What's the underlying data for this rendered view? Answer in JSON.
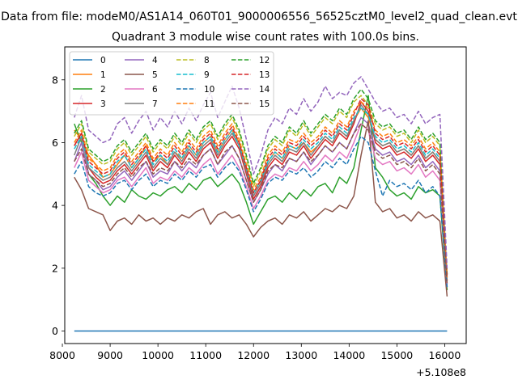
{
  "chart_data": {
    "type": "line",
    "suptitle": "Data from file: modeM0/AS1A14_060T01_9000006556_56525cztM0_level2_quad_clean.evt",
    "title": "Quadrant 3 module wise count rates with 100.0s bins.",
    "xlabel": "",
    "ylabel": "",
    "offset_text": "+5.108e8",
    "xlim": [
      8050,
      16450
    ],
    "ylim": [
      -0.4,
      9.05
    ],
    "xticks": [
      8000,
      9000,
      10000,
      11000,
      12000,
      13000,
      14000,
      15000,
      16000
    ],
    "xtick_labels": [
      "8000",
      "9000",
      "10000",
      "11000",
      "12000",
      "13000",
      "14000",
      "15000",
      "16000"
    ],
    "yticks": [
      0,
      2,
      4,
      6,
      8
    ],
    "ytick_labels": [
      "0",
      "2",
      "4",
      "6",
      "8"
    ],
    "x": [
      8250,
      8400,
      8550,
      8700,
      8850,
      9000,
      9150,
      9300,
      9450,
      9600,
      9750,
      9900,
      10050,
      10200,
      10350,
      10500,
      10650,
      10800,
      10950,
      11100,
      11250,
      11400,
      11550,
      11700,
      11850,
      12000,
      12150,
      12300,
      12450,
      12600,
      12750,
      12900,
      13050,
      13200,
      13350,
      13500,
      13650,
      13800,
      13950,
      14100,
      14250,
      14400,
      14550,
      14700,
      14850,
      15000,
      15150,
      15300,
      15450,
      15600,
      15750,
      15900,
      16050
    ],
    "legend_position": "upper left",
    "series": [
      {
        "name": "0",
        "color": "#1f77b4",
        "dash": "solid",
        "values": [
          0,
          0,
          0,
          0,
          0,
          0,
          0,
          0,
          0,
          0,
          0,
          0,
          0,
          0,
          0,
          0,
          0,
          0,
          0,
          0,
          0,
          0,
          0,
          0,
          0,
          0,
          0,
          0,
          0,
          0,
          0,
          0,
          0,
          0,
          0,
          0,
          0,
          0,
          0,
          0,
          0,
          0,
          0,
          0,
          0,
          0,
          0,
          0,
          0,
          0,
          0,
          0,
          0
        ]
      },
      {
        "name": "1",
        "color": "#ff7f0e",
        "dash": "solid",
        "values": [
          6.4,
          6.1,
          5.6,
          5.3,
          4.9,
          5.0,
          5.3,
          5.6,
          5.2,
          5.5,
          5.9,
          5.4,
          5.6,
          5.3,
          5.7,
          5.5,
          5.9,
          5.6,
          6.0,
          6.2,
          5.7,
          6.1,
          6.4,
          6.0,
          5.2,
          4.4,
          4.8,
          5.4,
          5.7,
          5.5,
          5.9,
          5.8,
          6.0,
          5.7,
          5.9,
          6.2,
          6.0,
          6.4,
          6.2,
          6.7,
          7.1,
          6.8,
          6.1,
          5.9,
          6.0,
          5.7,
          5.8,
          5.6,
          5.9,
          5.5,
          5.7,
          5.4,
          1.8
        ]
      },
      {
        "name": "2",
        "color": "#2ca02c",
        "dash": "solid",
        "values": [
          6.6,
          6.0,
          5.0,
          4.7,
          4.3,
          4.0,
          4.3,
          4.1,
          4.5,
          4.3,
          4.2,
          4.4,
          4.3,
          4.5,
          4.6,
          4.4,
          4.7,
          4.5,
          4.8,
          4.9,
          4.6,
          4.8,
          5.0,
          4.7,
          4.1,
          3.4,
          3.8,
          4.2,
          4.3,
          4.1,
          4.4,
          4.2,
          4.5,
          4.3,
          4.6,
          4.7,
          4.4,
          4.9,
          4.7,
          5.2,
          6.4,
          7.5,
          5.2,
          4.9,
          4.5,
          4.3,
          4.4,
          4.2,
          4.6,
          4.4,
          4.5,
          4.3,
          1.3
        ]
      },
      {
        "name": "3",
        "color": "#d62728",
        "dash": "solid",
        "values": [
          5.9,
          6.3,
          5.2,
          4.9,
          4.7,
          4.8,
          5.1,
          5.3,
          5.0,
          5.3,
          5.6,
          5.1,
          5.4,
          5.2,
          5.6,
          5.3,
          5.7,
          5.4,
          5.8,
          6.0,
          5.5,
          5.9,
          6.2,
          5.8,
          5.0,
          4.2,
          4.6,
          5.2,
          5.5,
          5.3,
          5.7,
          5.6,
          5.9,
          5.5,
          5.8,
          6.1,
          5.9,
          6.3,
          6.1,
          6.6,
          7.3,
          7.0,
          6.0,
          5.8,
          5.9,
          5.6,
          5.7,
          5.5,
          5.8,
          5.4,
          5.6,
          5.3,
          1.6
        ]
      },
      {
        "name": "4",
        "color": "#9467bd",
        "dash": "solid",
        "values": [
          5.4,
          6.0,
          5.0,
          4.8,
          4.5,
          4.6,
          4.9,
          5.1,
          4.8,
          5.1,
          5.4,
          4.9,
          5.1,
          5.0,
          5.4,
          5.1,
          5.4,
          5.2,
          5.6,
          5.8,
          5.3,
          5.6,
          5.9,
          5.5,
          4.8,
          4.1,
          4.5,
          5.0,
          5.3,
          5.1,
          5.5,
          5.4,
          5.7,
          5.3,
          5.6,
          5.9,
          5.7,
          6.0,
          5.8,
          6.3,
          6.8,
          6.6,
          5.8,
          5.6,
          5.7,
          5.4,
          5.5,
          5.3,
          5.6,
          5.2,
          5.4,
          5.1,
          1.5
        ]
      },
      {
        "name": "5",
        "color": "#8c564b",
        "dash": "solid",
        "values": [
          4.9,
          4.5,
          3.9,
          3.8,
          3.7,
          3.2,
          3.5,
          3.6,
          3.4,
          3.7,
          3.5,
          3.6,
          3.4,
          3.6,
          3.5,
          3.7,
          3.6,
          3.8,
          3.9,
          3.4,
          3.7,
          3.8,
          3.6,
          3.7,
          3.4,
          3.0,
          3.3,
          3.5,
          3.6,
          3.4,
          3.7,
          3.6,
          3.8,
          3.5,
          3.7,
          3.9,
          3.8,
          4.0,
          3.9,
          4.3,
          5.6,
          6.7,
          4.1,
          3.8,
          3.9,
          3.6,
          3.7,
          3.5,
          3.8,
          3.6,
          3.7,
          3.5,
          1.1
        ]
      },
      {
        "name": "6",
        "color": "#e377c2",
        "dash": "solid",
        "values": [
          5.2,
          5.7,
          4.8,
          4.6,
          4.4,
          4.5,
          4.8,
          4.9,
          4.6,
          4.9,
          5.2,
          4.7,
          4.9,
          4.8,
          5.1,
          4.9,
          5.2,
          5.0,
          5.3,
          5.5,
          5.0,
          5.3,
          5.6,
          5.2,
          4.6,
          3.9,
          4.3,
          4.8,
          5.0,
          4.9,
          5.2,
          5.1,
          5.4,
          5.1,
          5.3,
          5.6,
          5.4,
          5.7,
          5.5,
          6.0,
          6.6,
          6.4,
          5.5,
          5.3,
          5.4,
          5.1,
          5.2,
          5.0,
          5.3,
          4.9,
          5.1,
          4.8,
          1.4
        ]
      },
      {
        "name": "7",
        "color": "#7f7f7f",
        "dash": "solid",
        "values": [
          5.6,
          6.2,
          5.2,
          5.0,
          4.8,
          4.9,
          5.2,
          5.4,
          5.1,
          5.4,
          5.7,
          5.2,
          5.5,
          5.3,
          5.7,
          5.4,
          5.8,
          5.5,
          5.9,
          6.1,
          5.6,
          6.0,
          6.3,
          5.9,
          5.1,
          4.3,
          4.7,
          5.3,
          5.6,
          5.4,
          5.8,
          5.7,
          6.0,
          5.6,
          5.9,
          6.2,
          6.0,
          6.4,
          6.2,
          6.7,
          7.2,
          6.9,
          6.1,
          5.9,
          6.0,
          5.7,
          5.8,
          5.6,
          5.9,
          5.5,
          5.7,
          5.4,
          1.6
        ]
      },
      {
        "name": "8",
        "color": "#bcbd22",
        "dash": "dashed",
        "values": [
          6.2,
          6.6,
          5.7,
          5.5,
          5.3,
          5.4,
          5.8,
          6.0,
          5.6,
          5.9,
          6.2,
          5.7,
          6.0,
          5.8,
          6.2,
          5.9,
          6.3,
          6.0,
          6.4,
          6.6,
          6.1,
          6.5,
          6.8,
          6.3,
          5.5,
          4.6,
          5.1,
          5.8,
          6.1,
          5.9,
          6.4,
          6.2,
          6.6,
          6.2,
          6.5,
          6.8,
          6.6,
          7.0,
          6.8,
          7.3,
          7.5,
          7.2,
          6.6,
          6.4,
          6.5,
          6.2,
          6.3,
          6.0,
          6.4,
          6.0,
          6.2,
          5.9,
          1.8
        ]
      },
      {
        "name": "9",
        "color": "#17becf",
        "dash": "dashed",
        "values": [
          5.8,
          6.2,
          5.3,
          5.1,
          4.9,
          5.0,
          5.4,
          5.6,
          5.2,
          5.5,
          5.8,
          5.3,
          5.6,
          5.4,
          5.8,
          5.5,
          5.9,
          5.6,
          6.0,
          6.2,
          5.7,
          6.1,
          6.4,
          5.9,
          5.2,
          4.4,
          4.8,
          5.4,
          5.7,
          5.5,
          5.9,
          5.8,
          6.1,
          5.8,
          6.0,
          6.3,
          6.1,
          6.5,
          6.3,
          6.8,
          7.1,
          6.9,
          6.2,
          6.0,
          6.1,
          5.8,
          5.9,
          5.7,
          6.0,
          5.6,
          5.8,
          5.5,
          1.7
        ]
      },
      {
        "name": "10",
        "color": "#1f77b4",
        "dash": "dashed",
        "values": [
          5.0,
          5.4,
          4.6,
          4.4,
          4.3,
          4.4,
          4.7,
          4.8,
          4.5,
          4.8,
          5.0,
          4.6,
          4.8,
          4.7,
          5.0,
          4.8,
          5.1,
          4.9,
          5.2,
          5.3,
          4.9,
          5.2,
          5.4,
          5.1,
          4.5,
          3.8,
          4.2,
          4.7,
          4.9,
          4.8,
          5.1,
          5.0,
          5.2,
          4.9,
          5.1,
          5.4,
          5.2,
          5.5,
          5.3,
          5.8,
          6.2,
          6.0,
          5.1,
          4.3,
          4.8,
          4.6,
          4.7,
          4.5,
          4.8,
          4.4,
          4.6,
          4.3,
          1.4
        ]
      },
      {
        "name": "11",
        "color": "#ff7f0e",
        "dash": "dashed",
        "values": [
          6.0,
          6.4,
          5.5,
          5.3,
          5.1,
          5.2,
          5.6,
          5.8,
          5.4,
          5.7,
          6.0,
          5.5,
          5.8,
          5.6,
          6.0,
          5.7,
          6.1,
          5.8,
          6.2,
          6.4,
          5.9,
          6.3,
          6.6,
          6.1,
          5.3,
          4.5,
          4.9,
          5.6,
          5.9,
          5.7,
          6.1,
          6.0,
          6.3,
          6.0,
          6.2,
          6.5,
          6.3,
          6.7,
          6.5,
          7.0,
          7.3,
          7.1,
          6.4,
          6.2,
          6.3,
          6.0,
          6.1,
          5.9,
          6.2,
          5.8,
          6.0,
          5.7,
          1.7
        ]
      },
      {
        "name": "12",
        "color": "#2ca02c",
        "dash": "dashed",
        "values": [
          6.3,
          6.7,
          5.8,
          5.6,
          5.4,
          5.5,
          5.9,
          6.1,
          5.7,
          6.0,
          6.3,
          5.8,
          6.1,
          5.9,
          6.3,
          6.0,
          6.4,
          6.1,
          6.5,
          6.7,
          6.2,
          6.6,
          6.9,
          6.4,
          5.6,
          4.7,
          5.2,
          5.9,
          6.2,
          6.0,
          6.5,
          6.3,
          6.7,
          6.3,
          6.6,
          6.9,
          6.7,
          7.1,
          6.9,
          7.4,
          7.7,
          7.4,
          6.7,
          6.5,
          6.6,
          6.3,
          6.4,
          6.1,
          6.5,
          6.1,
          6.3,
          6.0,
          1.8
        ]
      },
      {
        "name": "13",
        "color": "#d62728",
        "dash": "dashed",
        "values": [
          5.9,
          6.3,
          5.4,
          5.2,
          5.0,
          5.1,
          5.5,
          5.7,
          5.3,
          5.6,
          5.9,
          5.4,
          5.7,
          5.5,
          5.9,
          5.6,
          6.0,
          5.7,
          6.1,
          6.3,
          5.8,
          6.2,
          6.5,
          6.0,
          5.2,
          4.4,
          4.8,
          5.5,
          5.8,
          5.6,
          6.0,
          5.9,
          6.2,
          5.9,
          6.1,
          6.4,
          6.2,
          6.6,
          6.4,
          6.9,
          7.4,
          7.2,
          6.3,
          6.1,
          6.2,
          5.9,
          6.0,
          5.8,
          6.1,
          5.7,
          5.9,
          5.6,
          1.7
        ]
      },
      {
        "name": "14",
        "color": "#9467bd",
        "dash": "dashed",
        "values": [
          6.8,
          7.5,
          6.4,
          6.2,
          6.0,
          6.1,
          6.6,
          6.8,
          6.3,
          6.7,
          7.0,
          6.4,
          6.8,
          6.5,
          7.0,
          6.6,
          7.1,
          6.7,
          7.2,
          7.6,
          6.8,
          7.3,
          7.8,
          7.1,
          6.1,
          5.0,
          5.6,
          6.4,
          6.8,
          6.6,
          7.1,
          6.9,
          7.4,
          7.0,
          7.3,
          7.8,
          7.4,
          7.6,
          7.5,
          7.9,
          8.1,
          7.7,
          7.3,
          7.0,
          7.1,
          6.8,
          6.9,
          6.6,
          7.0,
          6.6,
          6.8,
          6.9,
          2.0
        ]
      },
      {
        "name": "15",
        "color": "#8c564b",
        "dash": "dashed",
        "values": [
          5.4,
          5.8,
          5.0,
          4.8,
          4.6,
          4.7,
          5.0,
          5.2,
          4.9,
          5.2,
          5.4,
          5.0,
          5.2,
          5.1,
          5.4,
          5.2,
          5.5,
          5.3,
          5.6,
          5.8,
          5.3,
          5.7,
          5.9,
          5.5,
          4.8,
          4.1,
          4.5,
          5.1,
          5.3,
          5.2,
          5.5,
          5.4,
          5.7,
          5.4,
          5.6,
          5.9,
          5.7,
          6.0,
          5.8,
          6.3,
          6.6,
          6.4,
          5.7,
          5.5,
          5.6,
          5.3,
          5.4,
          5.2,
          5.5,
          5.1,
          5.3,
          5.0,
          1.5
        ]
      }
    ]
  }
}
